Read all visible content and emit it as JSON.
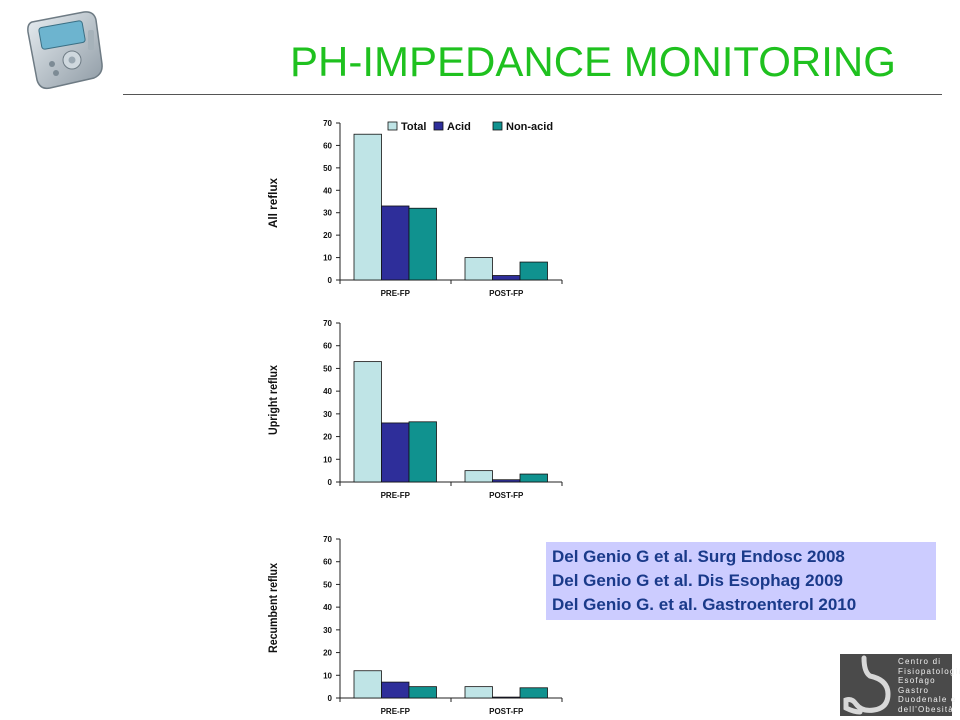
{
  "slide": {
    "title": "PH-IMPEDANCE MONITORING"
  },
  "references": [
    "Del Genio G et al. Surg Endosc 2008",
    "Del Genio G et al. Dis Esophag 2009",
    "Del Genio G. et al. Gastroenterol 2010"
  ],
  "center_logo": {
    "lines": [
      "Centro di",
      "Fisiopatologia",
      "Esofago",
      "Gastro",
      "Duodenale e",
      "dell'Obesità"
    ],
    "icon": "stomach-icon"
  },
  "device_icon": "ph-monitor-device-icon",
  "colors": {
    "title": "#1fc11f",
    "total": "#bfe4e6",
    "acid": "#2e2e9a",
    "nonacid": "#10928f",
    "reference_box": "#ccccff",
    "reference_text": "#1a3a8a"
  },
  "chart_data": [
    {
      "type": "bar",
      "ylabel": "All reflux",
      "categories": [
        "PRE-FP",
        "POST-FP"
      ],
      "series": [
        {
          "name": "Total",
          "values": [
            65,
            10
          ]
        },
        {
          "name": "Acid",
          "values": [
            33,
            2
          ]
        },
        {
          "name": "Non-acid",
          "values": [
            32,
            8
          ]
        }
      ],
      "ylim": [
        0,
        70
      ],
      "yticks": [
        "0",
        "10",
        "20",
        "30",
        "40",
        "50",
        "60",
        "70"
      ],
      "legend": "top"
    },
    {
      "type": "bar",
      "ylabel": "Upright reflux",
      "categories": [
        "PRE-FP",
        "POST-FP"
      ],
      "series": [
        {
          "values": [
            53,
            5
          ]
        },
        {
          "values": [
            26,
            1
          ]
        },
        {
          "values": [
            26.5,
            3.5
          ]
        }
      ],
      "ylim": [
        0,
        70
      ],
      "yticks": [
        "0",
        "10",
        "20",
        "30",
        "40",
        "50",
        "60",
        "70"
      ]
    },
    {
      "type": "bar",
      "ylabel": "Recumbent reflux",
      "categories": [
        "PRE-FP",
        "POST-FP"
      ],
      "series": [
        {
          "values": [
            12,
            5
          ]
        },
        {
          "values": [
            7,
            0.4
          ]
        },
        {
          "values": [
            5,
            4.5
          ]
        }
      ],
      "ylim": [
        0,
        70
      ],
      "yticks": [
        "0",
        "10",
        "20",
        "30",
        "40",
        "50",
        "60",
        "70"
      ]
    }
  ]
}
